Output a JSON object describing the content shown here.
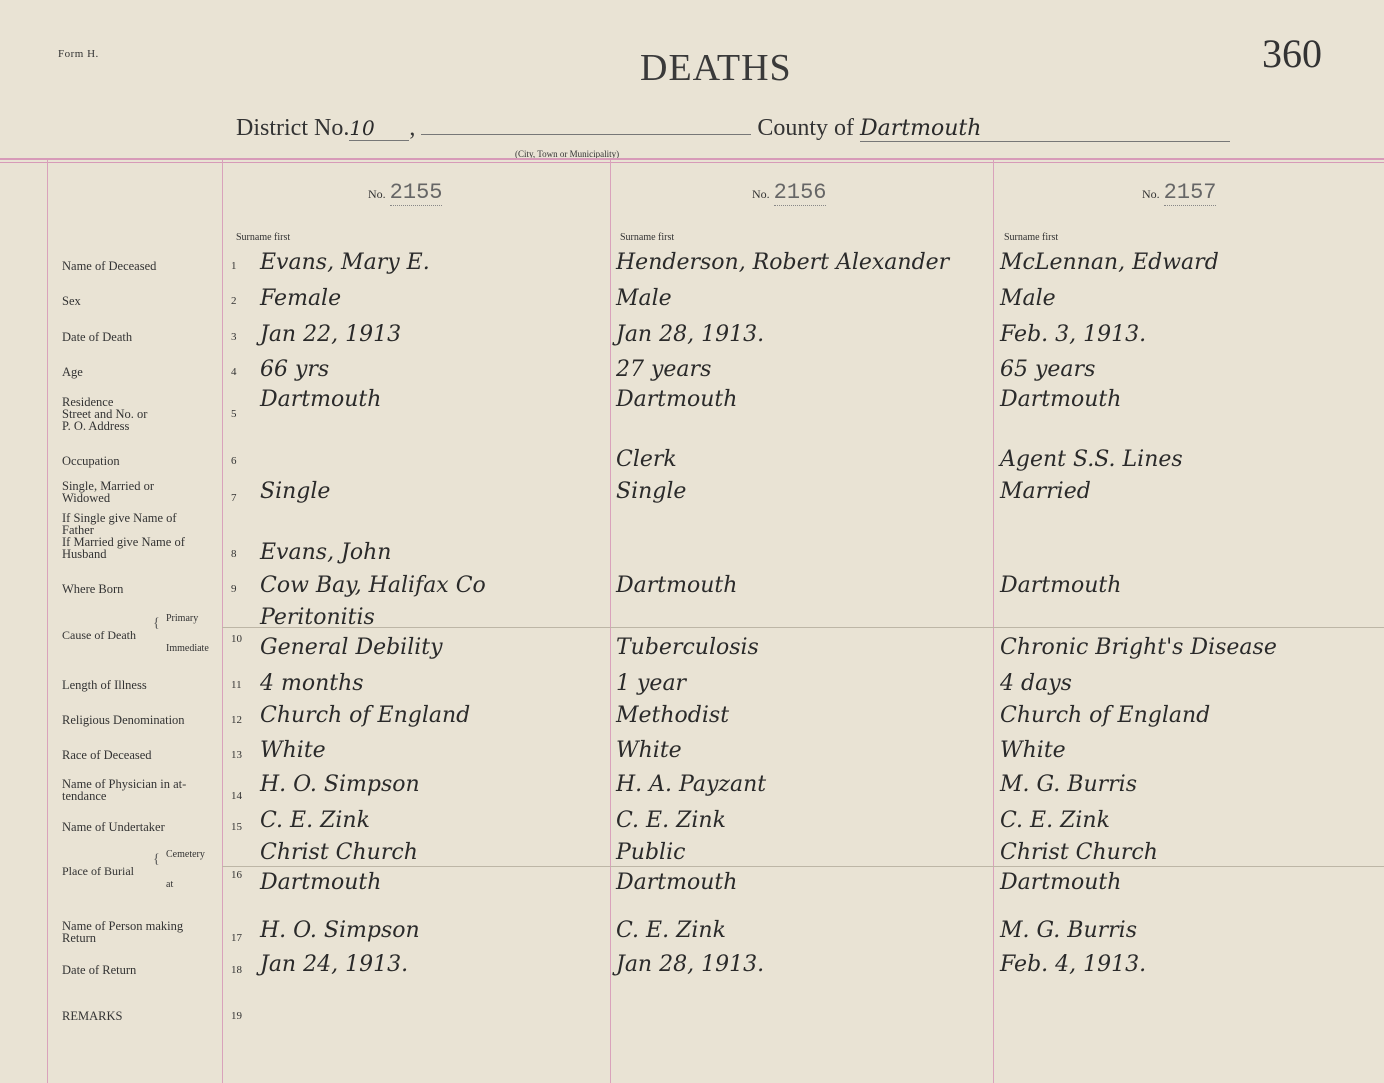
{
  "header": {
    "form": "Form H.",
    "title": "DEATHS",
    "page_number": "360",
    "district_label": "District No.",
    "district_value": "10",
    "municipality_hint": "(City, Town or Municipality)",
    "county_label": "County of",
    "county_value": "Dartmouth"
  },
  "columns": [
    {
      "no_label": "No.",
      "no": "2155",
      "surname_hint": "Surname first"
    },
    {
      "no_label": "No.",
      "no": "2156",
      "surname_hint": "Surname first"
    },
    {
      "no_label": "No.",
      "no": "2157",
      "surname_hint": "Surname first"
    }
  ],
  "rows": [
    {
      "n": "1",
      "label": "Name of Deceased",
      "values": [
        "Evans, Mary E.",
        "Henderson, Robert Alexander",
        "McLennan, Edward"
      ]
    },
    {
      "n": "2",
      "label": "Sex",
      "values": [
        "Female",
        "Male",
        "Male"
      ]
    },
    {
      "n": "3",
      "label": "Date of Death",
      "values": [
        "Jan 22, 1913",
        "Jan 28, 1913.",
        "Feb. 3, 1913."
      ]
    },
    {
      "n": "4",
      "label": "Age",
      "values": [
        "66 yrs",
        "27 years",
        "65 years"
      ]
    },
    {
      "n": "5",
      "label": "Residence\nStreet and No. or\nP. O. Address",
      "values": [
        "Dartmouth",
        "Dartmouth",
        "Dartmouth"
      ]
    },
    {
      "n": "6",
      "label": "Occupation",
      "values": [
        "",
        "Clerk",
        "Agent S.S. Lines"
      ]
    },
    {
      "n": "7",
      "label": "Single, Married or\nWidowed",
      "values": [
        "Single",
        "Single",
        "Married"
      ]
    },
    {
      "n": "8",
      "label": "If Single give Name of\nFather\nIf Married give Name of\nHusband",
      "values": [
        "Evans, John",
        "",
        ""
      ]
    },
    {
      "n": "9",
      "label": "Where Born",
      "values": [
        "Cow Bay, Halifax Co",
        "Dartmouth",
        "Dartmouth"
      ]
    },
    {
      "n": "10",
      "label": "Cause of Death",
      "sub": [
        "Primary",
        "Immediate"
      ],
      "values": [
        "Peritonitis",
        "",
        ""
      ],
      "values2": [
        "General Debility",
        "Tuberculosis",
        "Chronic Bright's Disease"
      ]
    },
    {
      "n": "11",
      "label": "Length of Illness",
      "values": [
        "4 months",
        "1 year",
        "4 days"
      ]
    },
    {
      "n": "12",
      "label": "Religious Denomination",
      "values": [
        "Church of England",
        "Methodist",
        "Church of England"
      ]
    },
    {
      "n": "13",
      "label": "Race of Deceased",
      "values": [
        "White",
        "White",
        "White"
      ]
    },
    {
      "n": "14",
      "label": "Name of Physician in at-\ntendance",
      "values": [
        "H. O. Simpson",
        "H. A. Payzant",
        "M. G. Burris"
      ]
    },
    {
      "n": "15",
      "label": "Name of Undertaker",
      "values": [
        "C. E. Zink",
        "C. E. Zink",
        "C. E. Zink"
      ]
    },
    {
      "n": "16",
      "label": "Place of Burial",
      "sub": [
        "Cemetery",
        "at"
      ],
      "values": [
        "Christ Church",
        "Public",
        "Christ Church"
      ],
      "values2": [
        "Dartmouth",
        "Dartmouth",
        "Dartmouth"
      ]
    },
    {
      "n": "17",
      "label": "Name of Person making\nReturn",
      "values": [
        "H. O. Simpson",
        "C. E. Zink",
        "M. G. Burris"
      ]
    },
    {
      "n": "18",
      "label": "Date of Return",
      "values": [
        "Jan 24, 1913.",
        "Jan 28, 1913.",
        "Feb. 4, 1913."
      ]
    },
    {
      "n": "19",
      "label": "REMARKS",
      "values": [
        "",
        "",
        ""
      ]
    }
  ],
  "colors": {
    "paper": "#e9e3d4",
    "rule": "#d79ab8",
    "ink": "#2a2a2a"
  }
}
